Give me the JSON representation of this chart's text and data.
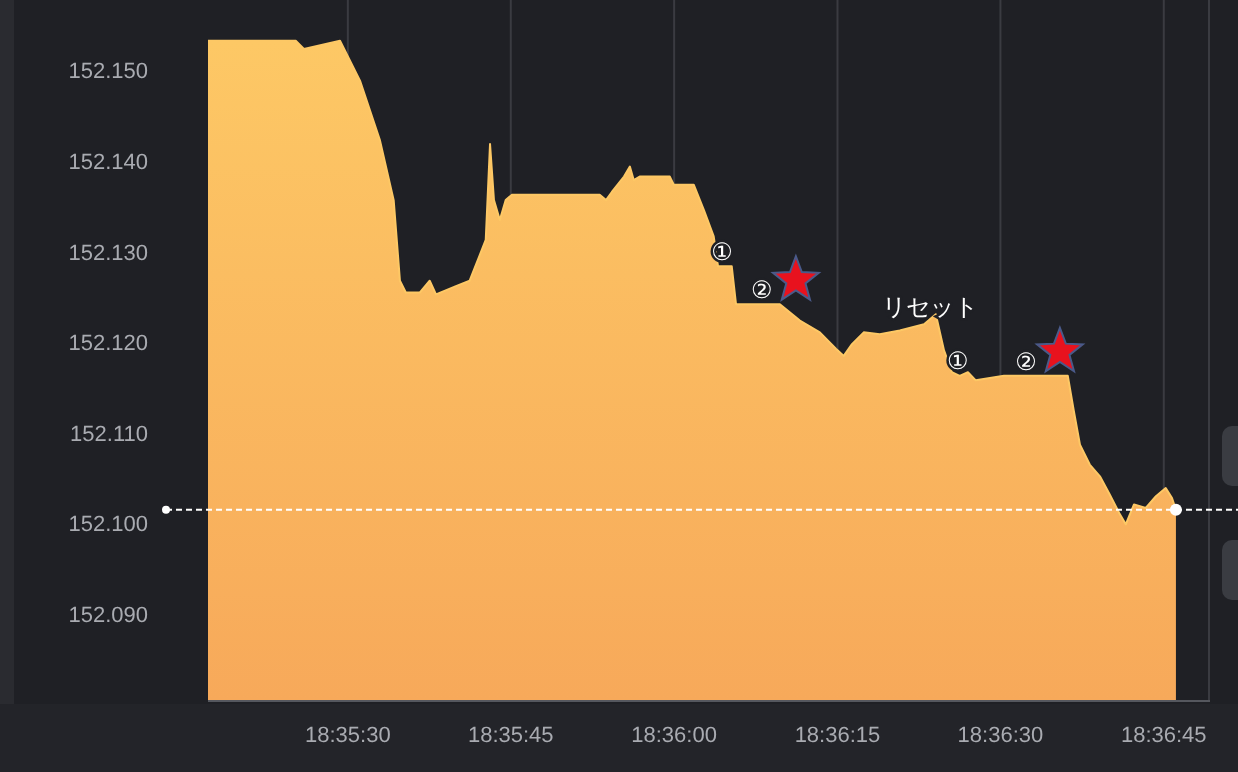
{
  "chart_data": {
    "type": "area",
    "x": [
      18.5881,
      18.59034,
      18.59055,
      18.59147,
      18.59198,
      18.59249,
      18.59284,
      18.593,
      18.59315,
      18.59351,
      18.59376,
      18.59392,
      18.59443,
      18.59478,
      18.59519,
      18.5953,
      18.5954,
      18.59555,
      18.5957,
      18.59586,
      18.5981,
      18.59826,
      18.59841,
      18.59872,
      18.59887,
      18.59897,
      18.59912,
      18.59989,
      18.59999,
      18.6005,
      18.60076,
      18.60101,
      18.60112,
      18.60147,
      18.60158,
      18.6027,
      18.60321,
      18.60372,
      18.60413,
      18.60433,
      18.60454,
      18.60484,
      18.60525,
      18.60576,
      18.60638,
      18.60668,
      18.60689,
      18.60709,
      18.60729,
      18.6075,
      18.6077,
      18.60842,
      18.61005,
      18.6102,
      18.61036,
      18.61061,
      18.61087,
      18.61112,
      18.61138,
      18.61153,
      18.61174,
      18.61204,
      18.6123,
      18.61255,
      18.61271,
      18.61281
    ],
    "series": [
      {
        "color": "#fdc865",
        "values": [
          152.1535,
          152.1535,
          152.1526,
          152.1535,
          152.1491,
          152.1425,
          152.1359,
          152.127,
          152.1257,
          152.1257,
          152.127,
          152.1255,
          152.1264,
          152.127,
          152.1315,
          152.1421,
          152.1359,
          152.1337,
          152.1359,
          152.1365,
          152.1365,
          152.1359,
          152.1368,
          152.1385,
          152.1396,
          152.1381,
          152.1385,
          152.1385,
          152.1376,
          152.1376,
          152.1348,
          152.1319,
          152.1286,
          152.1286,
          152.1244,
          152.1244,
          152.1226,
          152.1213,
          152.1195,
          152.1187,
          152.12,
          152.1213,
          152.1211,
          152.1215,
          152.1222,
          152.1233,
          152.1193,
          152.1169,
          152.1165,
          152.1169,
          152.116,
          152.1165,
          152.1165,
          152.1127,
          152.1089,
          152.1067,
          152.1054,
          152.1034,
          152.1012,
          152.1001,
          152.1023,
          152.1019,
          152.1032,
          152.1041,
          152.103,
          152.1017
        ]
      }
    ],
    "xlim": [
      18.5881,
      18.61368
    ],
    "ylim": [
      152.0807,
      152.158
    ],
    "xticks": [
      {
        "value": 18.59167,
        "label": "18:35:30"
      },
      {
        "value": 18.59583,
        "label": "18:35:45"
      },
      {
        "value": 18.6,
        "label": "18:36:00"
      },
      {
        "value": 18.60417,
        "label": "18:36:15"
      },
      {
        "value": 18.60833,
        "label": "18:36:30"
      },
      {
        "value": 18.6125,
        "label": "18:36:45"
      }
    ],
    "yticks": [
      {
        "value": 152.09,
        "label": "152.090"
      },
      {
        "value": 152.1,
        "label": "152.100"
      },
      {
        "value": 152.11,
        "label": "152.110"
      },
      {
        "value": 152.12,
        "label": "152.120"
      },
      {
        "value": 152.13,
        "label": "152.130"
      },
      {
        "value": 152.14,
        "label": "152.140"
      },
      {
        "value": 152.15,
        "label": "152.150"
      }
    ],
    "grid": "x",
    "ref_lines": [
      {
        "axis": "y",
        "value": 152.1017,
        "color": "#ffffff",
        "line_style": "dashed"
      }
    ],
    "annotations": [
      {
        "text": "①",
        "x": 18.60122,
        "y": 152.1286
      },
      {
        "text": "②",
        "x": 18.60224,
        "y": 152.1244
      },
      {
        "text": "リセット",
        "x": 18.60653,
        "y": 152.1226
      },
      {
        "text": "①",
        "x": 18.60724,
        "y": 152.1166
      },
      {
        "text": "②",
        "x": 18.60898,
        "y": 152.1165
      }
    ]
  }
}
